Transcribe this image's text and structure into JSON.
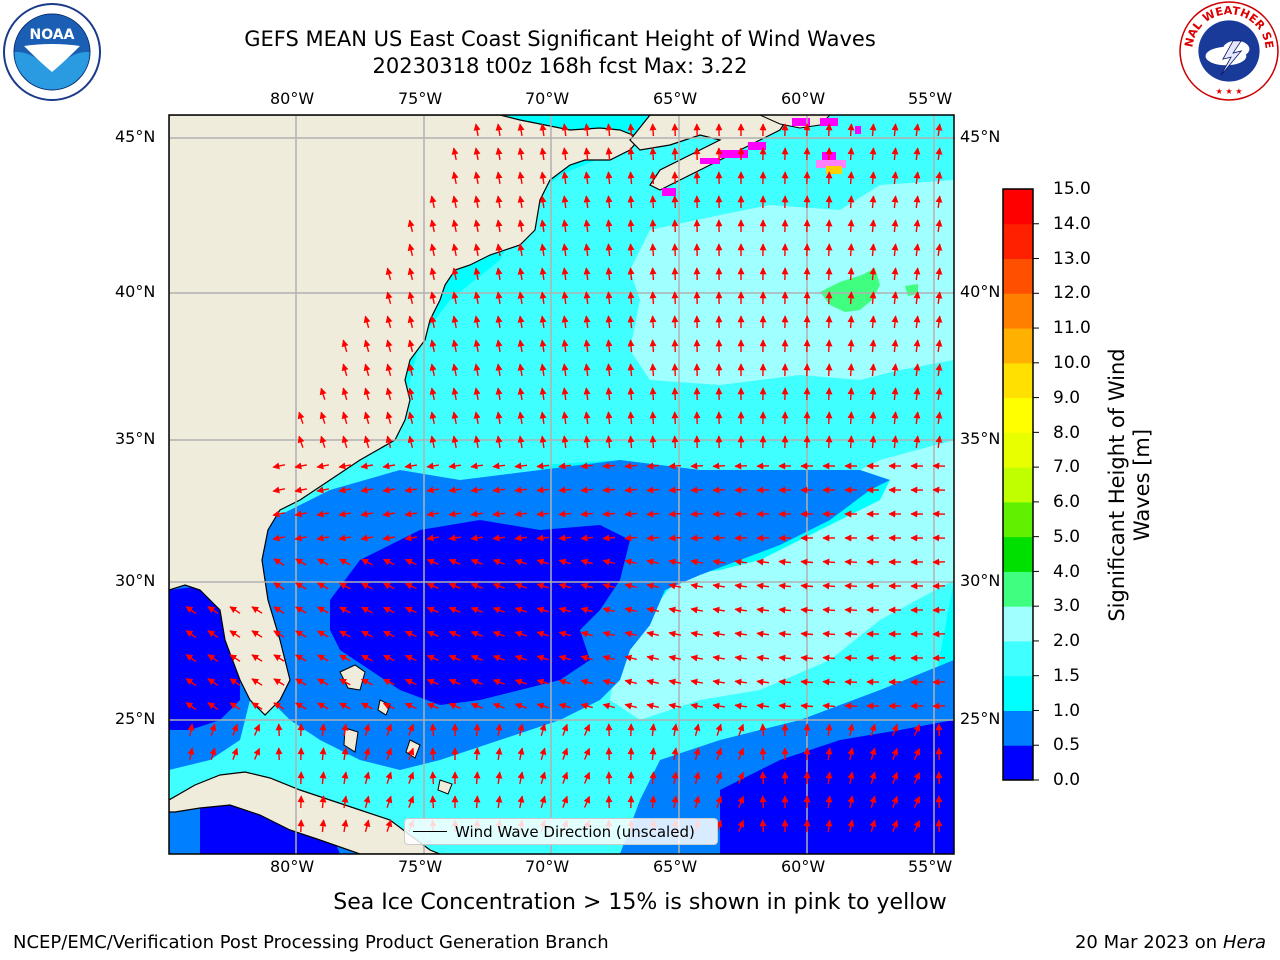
{
  "title": {
    "line1": "GEFS MEAN US East Coast Significant Height of Wind Waves",
    "line2": "20230318 t00z 168h fcst   Max: 3.22"
  },
  "logos": {
    "left": "noaa-logo",
    "left_text": "NOAA",
    "right": "national-weather-service-logo",
    "right_text": "NATIONAL WEATHER SERVICE"
  },
  "map": {
    "lon_ticks_top": [
      "80°W",
      "75°W",
      "70°W",
      "65°W",
      "60°W",
      "55°W"
    ],
    "lon_ticks_bottom": [
      "80°W",
      "75°W",
      "70°W",
      "65°W",
      "60°W",
      "55°W"
    ],
    "lat_ticks_left": [
      "45°N",
      "40°N",
      "35°N",
      "30°N",
      "25°N"
    ],
    "lat_ticks_right": [
      "45°N",
      "40°N",
      "35°N",
      "30°N",
      "25°N"
    ],
    "legend_label": "Wind Wave Direction (unscaled)",
    "colors": {
      "land": "#efecdc",
      "grid": "#b0b0b0",
      "arrows": "#ff0000",
      "coast": "#000000",
      "sea_ice": "#ff00ff"
    }
  },
  "colorbar": {
    "label": "Significant Height of Wind Waves [m]",
    "ticks": [
      "0.0",
      "0.5",
      "1.0",
      "1.5",
      "2.0",
      "3.0",
      "4.0",
      "5.0",
      "6.0",
      "7.0",
      "8.0",
      "9.0",
      "10.0",
      "11.0",
      "12.0",
      "13.0",
      "14.0",
      "15.0"
    ],
    "colors": [
      "#0000ff",
      "#0080ff",
      "#00ffff",
      "#40ffff",
      "#a0ffff",
      "#40ff80",
      "#00e000",
      "#60f000",
      "#c0ff00",
      "#e8ff00",
      "#ffff00",
      "#ffe000",
      "#ffb000",
      "#ff8000",
      "#ff5000",
      "#ff2000",
      "#ff0000"
    ]
  },
  "footer": {
    "note": "Sea Ice Concentration > 15% is shown in pink to yellow",
    "credit": "NCEP/EMC/Verification Post Processing Product Generation Branch",
    "date": "20 Mar 2023 on",
    "host": "Hera"
  }
}
